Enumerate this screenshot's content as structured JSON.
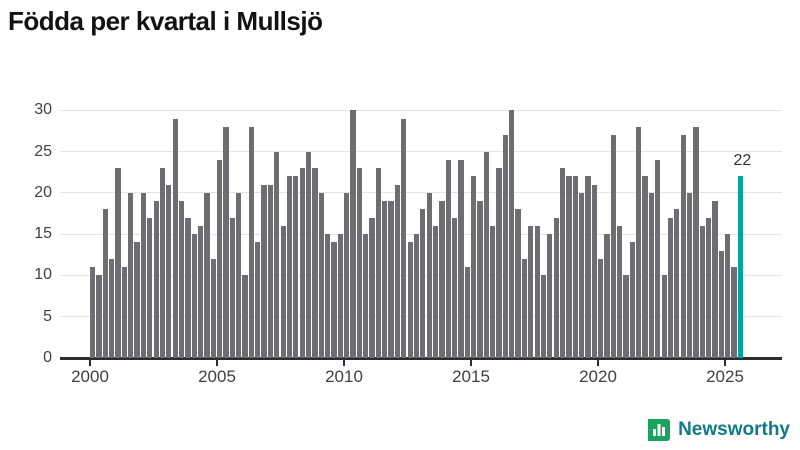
{
  "title": "Födda per kvartal i Mullsjö",
  "footer": {
    "brand": "Newsworthy"
  },
  "chart_data": {
    "type": "bar",
    "title": "Födda per kvartal i Mullsjö",
    "x_start": "2000 Q1",
    "x_end": "2025 Q3",
    "frequency": "quarterly",
    "values": [
      11,
      10,
      18,
      12,
      23,
      11,
      20,
      14,
      20,
      17,
      19,
      23,
      21,
      29,
      19,
      17,
      15,
      16,
      20,
      12,
      24,
      28,
      17,
      20,
      10,
      28,
      14,
      21,
      21,
      25,
      16,
      22,
      22,
      23,
      25,
      23,
      20,
      15,
      14,
      15,
      20,
      30,
      23,
      15,
      17,
      23,
      19,
      19,
      21,
      29,
      14,
      15,
      18,
      20,
      16,
      19,
      24,
      17,
      24,
      11,
      22,
      19,
      25,
      16,
      23,
      27,
      30,
      18,
      12,
      16,
      16,
      10,
      15,
      17,
      23,
      22,
      22,
      20,
      22,
      21,
      12,
      15,
      27,
      16,
      10,
      14,
      28,
      22,
      20,
      24,
      10,
      17,
      18,
      27,
      20,
      28,
      16,
      17,
      19,
      13,
      15,
      11,
      22
    ],
    "xticks": [
      "2000",
      "2005",
      "2010",
      "2015",
      "2020",
      "2025"
    ],
    "yticks": [
      0,
      5,
      10,
      15,
      20,
      25,
      30
    ],
    "ylim": [
      0,
      30
    ],
    "grid": "horizontal",
    "legend": "none",
    "bar_color": "#6e6e72",
    "highlight_index": 102,
    "highlight_color": "#00a3a6",
    "highlight_label": "22"
  }
}
